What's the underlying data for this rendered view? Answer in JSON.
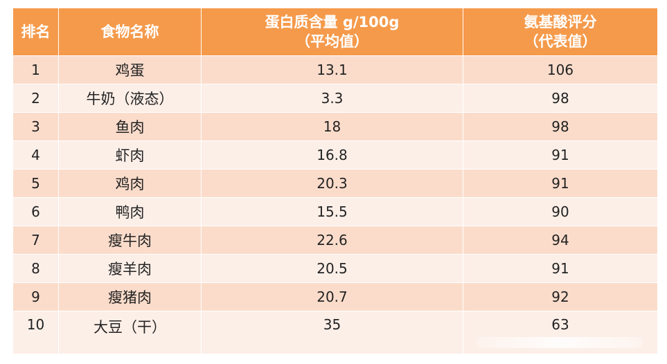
{
  "table": {
    "headers": {
      "rank": "排名",
      "food": "食物名称",
      "protein_line1": "蛋白质含量  g/100g",
      "protein_line2": "（平均值）",
      "score_line1": "氨基酸评分",
      "score_line2": "（代表值）"
    },
    "rows": [
      {
        "rank": "1",
        "food": "鸡蛋",
        "protein": "13.1",
        "score": "106"
      },
      {
        "rank": "2",
        "food": "牛奶（液态）",
        "protein": "3.3",
        "score": "98"
      },
      {
        "rank": "3",
        "food": "鱼肉",
        "protein": "18",
        "score": "98"
      },
      {
        "rank": "4",
        "food": "虾肉",
        "protein": "16.8",
        "score": "91"
      },
      {
        "rank": "5",
        "food": "鸡肉",
        "protein": "20.3",
        "score": "91"
      },
      {
        "rank": "6",
        "food": "鸭肉",
        "protein": "15.5",
        "score": "90"
      },
      {
        "rank": "7",
        "food": "瘦牛肉",
        "protein": "22.6",
        "score": "94"
      },
      {
        "rank": "8",
        "food": "瘦羊肉",
        "protein": "20.5",
        "score": "91"
      },
      {
        "rank": "9",
        "food": "瘦猪肉",
        "protein": "20.7",
        "score": "92"
      },
      {
        "rank": "10",
        "food": "大豆（干）",
        "protein": "35",
        "score": "63"
      }
    ]
  },
  "colors": {
    "header": "#f59a4b",
    "row_odd": "#fbdccb",
    "row_even": "#fcefe8"
  }
}
